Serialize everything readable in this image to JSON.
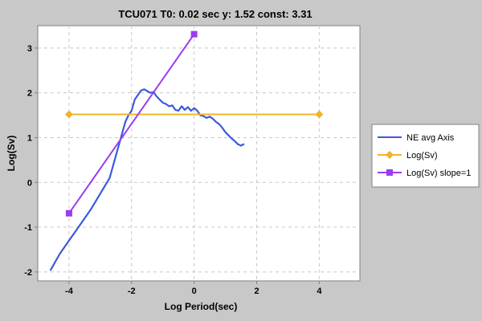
{
  "chart_data": {
    "type": "line",
    "title": "TCU071 T0: 0.02 sec  y: 1.52 const: 3.31",
    "xlabel": "Log Period(sec)",
    "ylabel": "Log(Sv)",
    "xlim": [
      -5,
      5.3
    ],
    "ylim": [
      -2.2,
      3.5
    ],
    "xticks": [
      -4,
      -2,
      0,
      2,
      4
    ],
    "yticks": [
      -2,
      -1,
      0,
      1,
      2,
      3
    ],
    "grid": true,
    "legend_position": "right",
    "series": [
      {
        "name": "NE avg Axis",
        "color": "#3c5adc",
        "marker": "none",
        "points": [
          [
            -4.6,
            -1.97
          ],
          [
            -4.3,
            -1.6
          ],
          [
            -4.0,
            -1.3
          ],
          [
            -3.7,
            -1.0
          ],
          [
            -3.3,
            -0.6
          ],
          [
            -3.0,
            -0.25
          ],
          [
            -2.7,
            0.1
          ],
          [
            -2.5,
            0.6
          ],
          [
            -2.3,
            1.1
          ],
          [
            -2.2,
            1.35
          ],
          [
            -2.1,
            1.5
          ],
          [
            -2.0,
            1.6
          ],
          [
            -1.9,
            1.85
          ],
          [
            -1.8,
            1.95
          ],
          [
            -1.7,
            2.05
          ],
          [
            -1.6,
            2.08
          ],
          [
            -1.5,
            2.04
          ],
          [
            -1.4,
            2.0
          ],
          [
            -1.3,
            2.02
          ],
          [
            -1.2,
            1.92
          ],
          [
            -1.1,
            1.85
          ],
          [
            -1.0,
            1.78
          ],
          [
            -0.9,
            1.75
          ],
          [
            -0.8,
            1.7
          ],
          [
            -0.7,
            1.72
          ],
          [
            -0.6,
            1.62
          ],
          [
            -0.5,
            1.6
          ],
          [
            -0.4,
            1.7
          ],
          [
            -0.3,
            1.62
          ],
          [
            -0.2,
            1.68
          ],
          [
            -0.1,
            1.6
          ],
          [
            0.0,
            1.66
          ],
          [
            0.1,
            1.6
          ],
          [
            0.2,
            1.5
          ],
          [
            0.3,
            1.48
          ],
          [
            0.4,
            1.44
          ],
          [
            0.5,
            1.47
          ],
          [
            0.6,
            1.42
          ],
          [
            0.7,
            1.35
          ],
          [
            0.8,
            1.3
          ],
          [
            0.9,
            1.22
          ],
          [
            1.0,
            1.12
          ],
          [
            1.1,
            1.05
          ],
          [
            1.2,
            0.98
          ],
          [
            1.3,
            0.92
          ],
          [
            1.4,
            0.85
          ],
          [
            1.5,
            0.82
          ],
          [
            1.6,
            0.86
          ]
        ]
      },
      {
        "name": "Log(Sv)",
        "color": "#f0b428",
        "marker": "diamond",
        "points": [
          [
            -4,
            1.52
          ],
          [
            4,
            1.52
          ]
        ]
      },
      {
        "name": "Log(Sv) slope=1",
        "color": "#9b3cf0",
        "marker": "square",
        "points": [
          [
            -4,
            -0.69
          ],
          [
            0,
            3.31
          ]
        ]
      }
    ]
  }
}
